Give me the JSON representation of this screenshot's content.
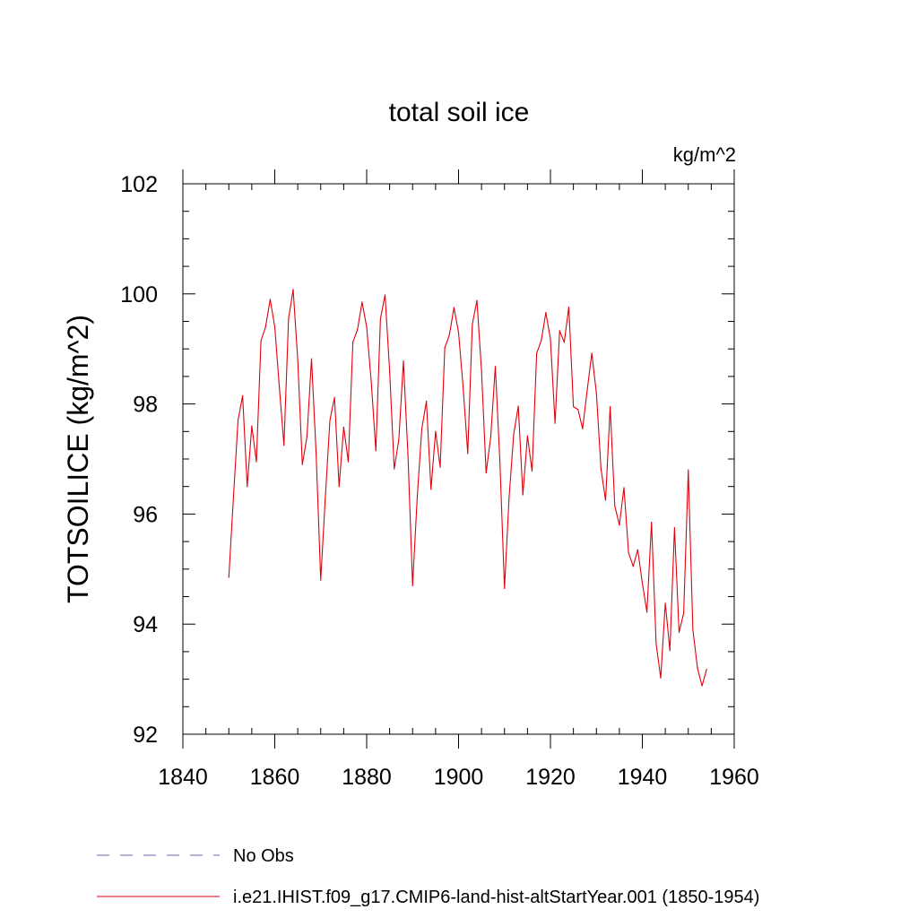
{
  "chart_data": {
    "type": "line",
    "title": "total soil ice",
    "units_label": "kg/m^2",
    "xlabel": "",
    "ylabel": "TOTSOILICE  (kg/m^2)",
    "xlim": [
      1840,
      1960
    ],
    "ylim": [
      92,
      102
    ],
    "x_ticks": [
      1840,
      1860,
      1880,
      1900,
      1920,
      1940,
      1960
    ],
    "y_ticks": [
      92,
      94,
      96,
      98,
      100,
      102
    ],
    "grid": false,
    "legend_position": "bottom-left",
    "legend": [
      {
        "label": "No Obs",
        "style": "dashed",
        "color": "#6a6ab4"
      },
      {
        "label": "i.e21.IHIST.f09_g17.CMIP6-land-hist-altStartYear.001 (1850-1954)",
        "style": "solid",
        "color": "#e0000b"
      }
    ],
    "series": [
      {
        "name": "i.e21.IHIST.f09_g17.CMIP6-land-hist-altStartYear.001 (1850-1954)",
        "color": "#e0000b",
        "x": [
          1850,
          1851,
          1852,
          1853,
          1854,
          1855,
          1856,
          1857,
          1858,
          1859,
          1860,
          1861,
          1862,
          1863,
          1864,
          1865,
          1866,
          1867,
          1868,
          1869,
          1870,
          1871,
          1872,
          1873,
          1874,
          1875,
          1876,
          1877,
          1878,
          1879,
          1880,
          1881,
          1882,
          1883,
          1884,
          1885,
          1886,
          1887,
          1888,
          1889,
          1890,
          1891,
          1892,
          1893,
          1894,
          1895,
          1896,
          1897,
          1898,
          1899,
          1900,
          1901,
          1902,
          1903,
          1904,
          1905,
          1906,
          1907,
          1908,
          1909,
          1910,
          1911,
          1912,
          1913,
          1914,
          1915,
          1916,
          1917,
          1918,
          1919,
          1920,
          1921,
          1922,
          1923,
          1924,
          1925,
          1926,
          1927,
          1928,
          1929,
          1930,
          1931,
          1932,
          1933,
          1934,
          1935,
          1936,
          1937,
          1938,
          1939,
          1940,
          1941,
          1942,
          1943,
          1944,
          1945,
          1946,
          1947,
          1948,
          1949,
          1950,
          1951,
          1952,
          1953,
          1954
        ],
        "y": [
          94.85,
          96.3,
          97.7,
          98.15,
          96.5,
          97.6,
          96.95,
          99.15,
          99.4,
          99.9,
          99.4,
          98.3,
          97.25,
          99.55,
          100.08,
          98.8,
          96.9,
          97.4,
          98.82,
          97.1,
          94.8,
          96.3,
          97.7,
          98.12,
          96.5,
          97.58,
          96.95,
          99.12,
          99.35,
          99.85,
          99.4,
          98.4,
          97.15,
          99.55,
          99.98,
          98.6,
          96.82,
          97.35,
          98.78,
          97.05,
          94.7,
          96.3,
          97.55,
          98.05,
          96.45,
          97.5,
          96.85,
          99.02,
          99.25,
          99.75,
          99.3,
          98.3,
          97.1,
          99.45,
          99.88,
          98.6,
          96.75,
          97.4,
          98.68,
          96.95,
          94.65,
          96.3,
          97.45,
          97.96,
          96.35,
          97.42,
          96.78,
          98.92,
          99.15,
          99.66,
          99.18,
          97.65,
          99.33,
          99.12,
          99.76,
          97.95,
          97.9,
          97.55,
          98.25,
          98.92,
          98.2,
          96.82,
          96.25,
          97.95,
          96.15,
          95.8,
          96.48,
          95.3,
          95.05,
          95.35,
          94.75,
          94.22,
          95.85,
          93.65,
          93.02,
          94.38,
          93.52,
          95.75,
          93.85,
          94.2,
          96.8,
          93.9,
          93.2,
          92.88,
          93.18
        ]
      }
    ]
  }
}
